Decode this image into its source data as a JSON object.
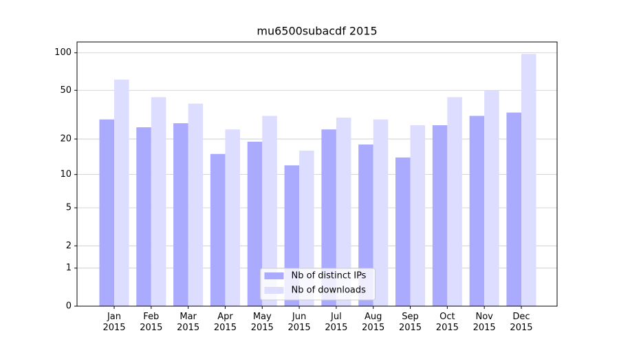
{
  "chart_data": {
    "type": "bar",
    "title": "mu6500subacdf 2015",
    "categories": [
      "Jan\n2015",
      "Feb\n2015",
      "Mar\n2015",
      "Apr\n2015",
      "May\n2015",
      "Jun\n2015",
      "Jul\n2015",
      "Aug\n2015",
      "Sep\n2015",
      "Oct\n2015",
      "Nov\n2015",
      "Dec\n2015"
    ],
    "series": [
      {
        "name": "Nb of distinct IPs",
        "color": "#aaaaff",
        "values": [
          29,
          25,
          27,
          15,
          19,
          12,
          24,
          18,
          14,
          26,
          31,
          33
        ]
      },
      {
        "name": "Nb of downloads",
        "color": "#ddddff",
        "values": [
          61,
          44,
          39,
          24,
          31,
          16,
          30,
          29,
          26,
          44,
          50,
          98
        ]
      }
    ],
    "yscale": "log1p",
    "ylim": [
      0,
      122
    ],
    "yticks": [
      0,
      1,
      2,
      5,
      10,
      20,
      50,
      100
    ],
    "grid": true,
    "legend": "lower center"
  }
}
